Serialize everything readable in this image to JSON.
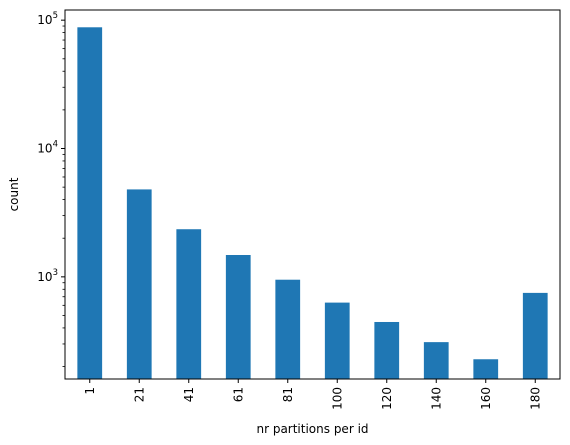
{
  "chart_data": {
    "type": "bar",
    "categories": [
      "1",
      "21",
      "41",
      "61",
      "81",
      "100",
      "120",
      "140",
      "160",
      "180"
    ],
    "values": [
      88000,
      4800,
      2350,
      1480,
      950,
      630,
      445,
      310,
      228,
      750
    ],
    "xlabel": "nr partitions per id",
    "ylabel": "count",
    "yscale": "log",
    "ylim": [
      160,
      120000
    ],
    "y_ticks": [
      {
        "value": 1000,
        "base": "10",
        "exp": "3"
      },
      {
        "value": 10000,
        "base": "10",
        "exp": "4"
      },
      {
        "value": 100000,
        "base": "10",
        "exp": "5"
      }
    ],
    "bar_color": "#1f77b4",
    "grid": false,
    "legend": "none"
  }
}
